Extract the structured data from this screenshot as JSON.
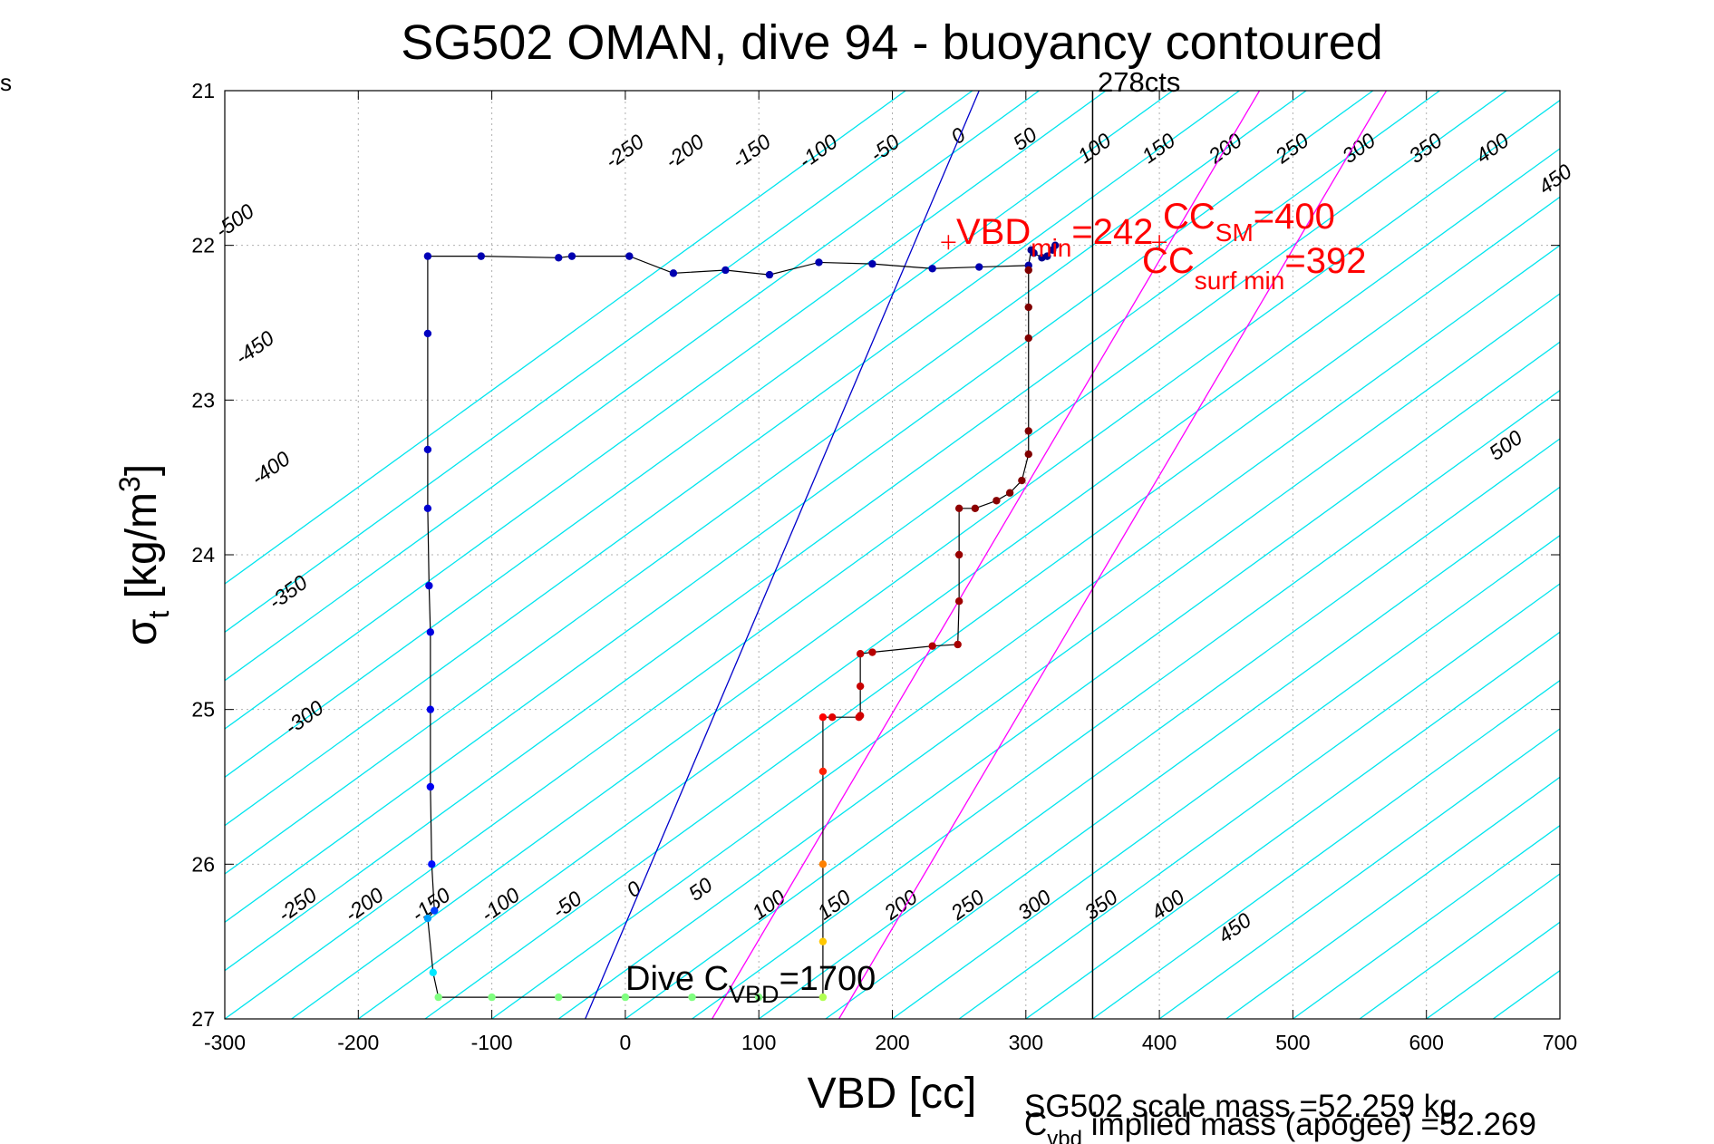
{
  "page": {
    "corner_label": "s"
  },
  "chart_data": {
    "type": "scatter",
    "title": "SG502 OMAN, dive 94 - buoyancy contoured",
    "xlabel": "VBD [cc]",
    "ylabel": "σ_t [kg/m^3]",
    "xlim": [
      -300,
      700
    ],
    "ylim": [
      27,
      21
    ],
    "y_reversed": true,
    "grid": true,
    "x_ticks": [
      "-300",
      "-200",
      "-100",
      "0",
      "100",
      "200",
      "300",
      "400",
      "500",
      "600",
      "700"
    ],
    "y_ticks": [
      "21",
      "22",
      "23",
      "24",
      "25",
      "26",
      "27"
    ],
    "colors": {
      "contour": "#00e5ee",
      "zero_line": "#0000cc",
      "magenta_lines": "#ff00ff",
      "annotation_red": "#ff0000",
      "trace_line": "#000000",
      "vertical_line": "#000000"
    },
    "buoyancy_contours": {
      "slope_cc_per_sigma": -160,
      "offsets": [
        -750,
        -700,
        -650,
        -600,
        -550,
        -500,
        -450,
        -400,
        -350,
        -300,
        -250,
        -200,
        -150,
        -100,
        -50,
        0,
        50,
        100,
        150,
        200,
        250,
        300,
        350,
        400,
        450,
        500,
        550,
        600,
        650,
        700,
        750,
        800,
        850,
        900
      ],
      "top_labels": [
        {
          "text": "-500",
          "x": -292,
          "y": 21.85
        },
        {
          "text": "-450",
          "x": -277,
          "y": 22.67
        },
        {
          "text": "-400",
          "x": -265,
          "y": 23.45
        },
        {
          "text": "-350",
          "x": -252,
          "y": 24.25
        },
        {
          "text": "-300",
          "x": -240,
          "y": 25.06
        },
        {
          "text": "-250",
          "x": 0,
          "y": 21.4
        },
        {
          "text": "-200",
          "x": 45,
          "y": 21.4
        },
        {
          "text": "-150",
          "x": 95,
          "y": 21.4
        },
        {
          "text": "-100",
          "x": 145,
          "y": 21.4
        },
        {
          "text": "-50",
          "x": 195,
          "y": 21.38
        },
        {
          "text": "0",
          "x": 250,
          "y": 21.3
        },
        {
          "text": "50",
          "x": 300,
          "y": 21.32
        },
        {
          "text": "100",
          "x": 352,
          "y": 21.38
        },
        {
          "text": "150",
          "x": 400,
          "y": 21.38
        },
        {
          "text": "200",
          "x": 450,
          "y": 21.38
        },
        {
          "text": "250",
          "x": 500,
          "y": 21.38
        },
        {
          "text": "300",
          "x": 550,
          "y": 21.38
        },
        {
          "text": "350",
          "x": 600,
          "y": 21.38
        },
        {
          "text": "400",
          "x": 650,
          "y": 21.38
        },
        {
          "text": "450",
          "x": 697,
          "y": 21.58
        },
        {
          "text": "500",
          "x": 660,
          "y": 23.3
        }
      ],
      "bottom_labels": [
        {
          "text": "-250",
          "x": -245,
          "y": 26.27
        },
        {
          "text": "-200",
          "x": -195,
          "y": 26.27
        },
        {
          "text": "-150",
          "x": -145,
          "y": 26.27
        },
        {
          "text": "-100",
          "x": -93,
          "y": 26.27
        },
        {
          "text": "-50",
          "x": -43,
          "y": 26.27
        },
        {
          "text": "0",
          "x": 7,
          "y": 26.17
        },
        {
          "text": "50",
          "x": 57,
          "y": 26.17
        },
        {
          "text": "100",
          "x": 108,
          "y": 26.27
        },
        {
          "text": "150",
          "x": 157,
          "y": 26.27
        },
        {
          "text": "200",
          "x": 207,
          "y": 26.27
        },
        {
          "text": "250",
          "x": 257,
          "y": 26.27
        },
        {
          "text": "300",
          "x": 307,
          "y": 26.27
        },
        {
          "text": "350",
          "x": 357,
          "y": 26.27
        },
        {
          "text": "400",
          "x": 407,
          "y": 26.27
        },
        {
          "text": "450",
          "x": 457,
          "y": 26.42
        }
      ]
    },
    "zero_buoyancy_line": {
      "label": "0",
      "points": [
        [
          -30,
          27
        ],
        [
          265,
          21
        ]
      ]
    },
    "magenta_lines": [
      {
        "points": [
          [
            65,
            27
          ],
          [
            475,
            21
          ]
        ]
      },
      {
        "points": [
          [
            160,
            27
          ],
          [
            570,
            21
          ]
        ]
      }
    ],
    "vertical_line": {
      "x": 350,
      "label": "278cts"
    },
    "trace": {
      "points": [
        [
          322,
          22.0
        ],
        [
          320,
          22.03
        ],
        [
          316,
          22.07
        ],
        [
          312,
          22.08
        ],
        [
          306,
          22.05
        ],
        [
          304,
          22.03
        ],
        [
          302,
          22.13
        ],
        [
          265,
          22.14
        ],
        [
          230,
          22.15
        ],
        [
          185,
          22.12
        ],
        [
          145,
          22.11
        ],
        [
          108,
          22.19
        ],
        [
          75,
          22.16
        ],
        [
          36,
          22.18
        ],
        [
          3,
          22.07
        ],
        [
          -40,
          22.07
        ],
        [
          -50,
          22.08
        ],
        [
          -108,
          22.07
        ],
        [
          -148,
          22.07
        ],
        [
          -148,
          22.57
        ],
        [
          -148,
          23.32
        ],
        [
          -148,
          23.7
        ],
        [
          -147,
          24.2
        ],
        [
          -146,
          24.5
        ],
        [
          -146,
          25
        ],
        [
          -146,
          25.5
        ],
        [
          -145,
          26
        ],
        [
          -143,
          26.3
        ],
        [
          -148,
          26.35
        ],
        [
          -144,
          26.7
        ],
        [
          -140,
          26.86
        ],
        [
          -100,
          26.86
        ],
        [
          -50,
          26.86
        ],
        [
          0,
          26.86
        ],
        [
          50,
          26.86
        ],
        [
          100,
          26.86
        ],
        [
          148,
          26.86
        ],
        [
          148,
          26.5
        ],
        [
          148,
          26
        ],
        [
          148,
          25.4
        ],
        [
          148,
          25.05
        ],
        [
          155,
          25.05
        ],
        [
          175,
          25.05
        ],
        [
          176,
          25.04
        ],
        [
          176,
          24.85
        ],
        [
          176,
          24.64
        ],
        [
          185,
          24.63
        ],
        [
          230,
          24.59
        ],
        [
          249,
          24.58
        ],
        [
          250,
          24.3
        ],
        [
          250,
          24
        ],
        [
          250,
          23.7
        ],
        [
          262,
          23.7
        ],
        [
          278,
          23.65
        ],
        [
          288,
          23.6
        ],
        [
          297,
          23.52
        ],
        [
          302,
          23.35
        ],
        [
          302,
          23.2
        ],
        [
          302,
          22.6
        ],
        [
          302,
          22.4
        ],
        [
          302,
          22.16
        ]
      ],
      "colors": [
        "#000090",
        "#000090",
        "#000090",
        "#000090",
        "#000090",
        "#000090",
        "#0000a8",
        "#0000b0",
        "#0000b0",
        "#0000b0",
        "#0000b0",
        "#0000b0",
        "#0000b0",
        "#0000b0",
        "#0000b0",
        "#0000b0",
        "#0000b0",
        "#0000b0",
        "#0000b8",
        "#0000c0",
        "#0000c8",
        "#0000d0",
        "#0000d8",
        "#0000e0",
        "#0000e8",
        "#0000f0",
        "#0010ff",
        "#0040ff",
        "#00a0ff",
        "#00e8ff",
        "#80ff80",
        "#80ff80",
        "#80ff80",
        "#80ff80",
        "#80ff80",
        "#80ff80",
        "#b0ff50",
        "#ffc800",
        "#ff8000",
        "#ff2000",
        "#ff0000",
        "#e00000",
        "#d80000",
        "#d00000",
        "#c80000",
        "#c00000",
        "#b80000",
        "#b00000",
        "#a80000",
        "#a00000",
        "#980000",
        "#900000",
        "#8c0000",
        "#880000",
        "#840000",
        "#800000",
        "#800000",
        "#800000",
        "#800000",
        "#800000",
        "#800000"
      ]
    },
    "annotations": {
      "vbd_min": {
        "base": "VBD",
        "sub": "min",
        "value": "=242",
        "x": 242,
        "y": 21.98
      },
      "cc_sm": {
        "base": "CC",
        "sub": "SM",
        "value": "=400",
        "x": 400,
        "y": 21.98
      },
      "cc_surf_min": {
        "base": "CC",
        "sub": "surf min",
        "value": "=392"
      },
      "dive_cvbd": {
        "base": "Dive C",
        "sub": "VBD",
        "value": "=1700"
      }
    },
    "footer": {
      "scale_mass": "SG502 scale mass =52.259 kg",
      "implied_base": "C",
      "implied_sub": "vbd",
      "implied_rest": " implied mass (apogee) =52.269"
    }
  }
}
